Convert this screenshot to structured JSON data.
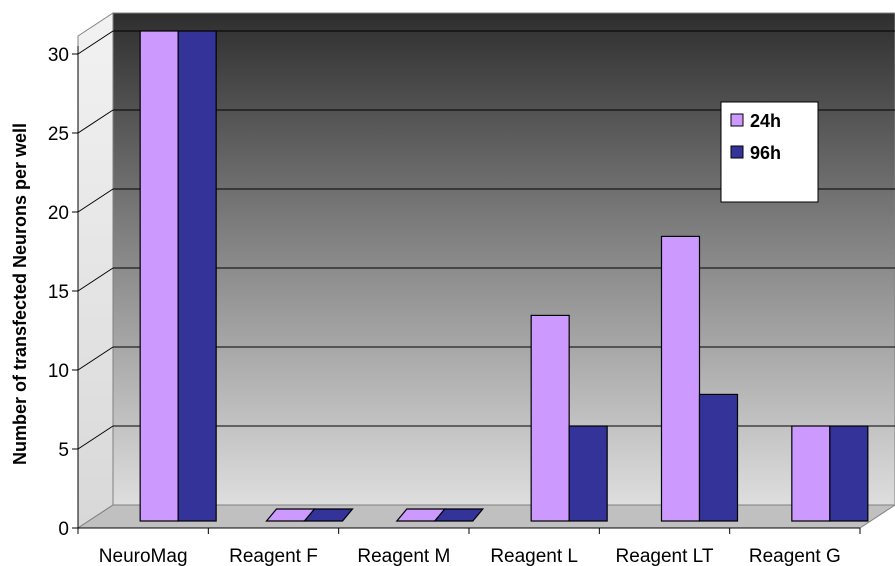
{
  "chart_data": {
    "type": "bar",
    "title": "",
    "xlabel": "",
    "ylabel": "Number of transfected Neurons per well",
    "ylim": [
      0,
      30
    ],
    "yticks": [
      0,
      5,
      10,
      15,
      20,
      25,
      30
    ],
    "categories": [
      "NeuroMag",
      "Reagent F",
      "Reagent M",
      "Reagent L",
      "Reagent LT",
      "Reagent G"
    ],
    "series": [
      {
        "name": "24h",
        "values": [
          30,
          0,
          0,
          12,
          17,
          5
        ],
        "color": "#cc99ff"
      },
      {
        "name": "96h",
        "values": [
          30,
          0,
          0,
          5,
          7,
          5
        ],
        "color": "#333399"
      }
    ],
    "grid": true,
    "legend_position": "top-right"
  }
}
